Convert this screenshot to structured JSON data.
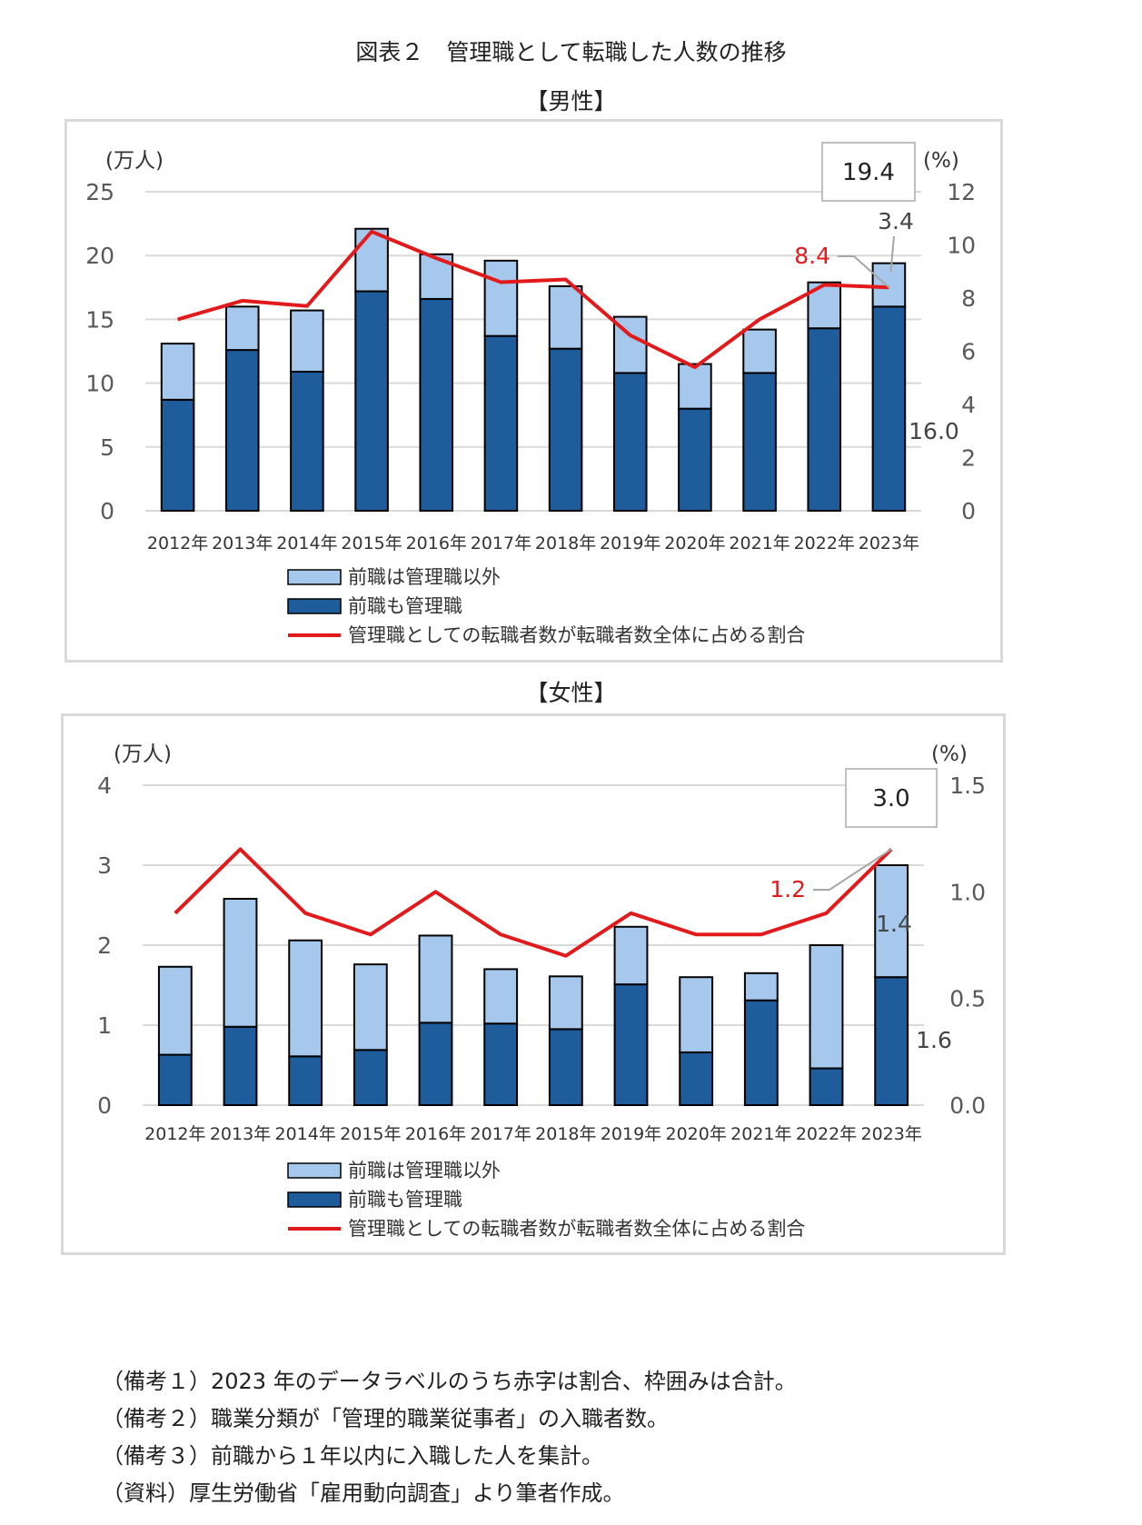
{
  "page_title": "図表２　管理職として転職した人数の推移",
  "colors": {
    "bar_light": "#a6c8ec",
    "bar_dark": "#1f5c9b",
    "line": "#e31a1c",
    "grid": "#d9d9d9",
    "axis_text": "#595959"
  },
  "chart_data": [
    {
      "type": "bar",
      "subtitle": "【男性】",
      "left_axis_unit": "(万人)",
      "right_axis_unit": "(%)",
      "categories": [
        "2012年",
        "2013年",
        "2014年",
        "2015年",
        "2016年",
        "2017年",
        "2018年",
        "2019年",
        "2020年",
        "2021年",
        "2022年",
        "2023年"
      ],
      "ylim": [
        0,
        25
      ],
      "yticks": [
        "0",
        "5",
        "10",
        "15",
        "20",
        "25"
      ],
      "y2lim": [
        0,
        12
      ],
      "y2ticks": [
        "0",
        "2",
        "4",
        "6",
        "8",
        "10",
        "12"
      ],
      "series": [
        {
          "name": "前職も管理職",
          "values": [
            8.7,
            12.6,
            10.9,
            17.2,
            16.6,
            13.7,
            12.7,
            10.8,
            8.0,
            10.8,
            14.3,
            16.0
          ]
        },
        {
          "name": "前職は管理職以外",
          "values": [
            4.4,
            3.4,
            4.8,
            4.9,
            3.5,
            5.9,
            4.9,
            4.4,
            3.5,
            3.4,
            3.6,
            3.4
          ]
        },
        {
          "name": "管理職としての転職者数が転職者数全体に占める割合",
          "axis": "right",
          "values": [
            7.2,
            7.9,
            7.7,
            10.5,
            9.5,
            8.6,
            8.7,
            6.6,
            5.4,
            7.2,
            8.5,
            8.4
          ]
        }
      ],
      "labels": {
        "total": "19.4",
        "upper": "3.4",
        "lower": "16.0",
        "ratio": "8.4"
      },
      "legend": [
        "前職は管理職以外",
        "前職も管理職",
        "管理職としての転職者数が転職者数全体に占める割合"
      ]
    },
    {
      "type": "bar",
      "subtitle": "【女性】",
      "left_axis_unit": "(万人)",
      "right_axis_unit": "(%)",
      "categories": [
        "2012年",
        "2013年",
        "2014年",
        "2015年",
        "2016年",
        "2017年",
        "2018年",
        "2019年",
        "2020年",
        "2021年",
        "2022年",
        "2023年"
      ],
      "ylim": [
        0,
        4
      ],
      "yticks": [
        "0",
        "1",
        "2",
        "3",
        "4"
      ],
      "y2lim": [
        0,
        1.5
      ],
      "y2ticks": [
        "0.0",
        "0.5",
        "1.0",
        "1.5"
      ],
      "series": [
        {
          "name": "前職も管理職",
          "values": [
            0.63,
            0.98,
            0.61,
            0.69,
            1.03,
            1.02,
            0.95,
            1.51,
            0.66,
            1.31,
            0.46,
            1.6
          ]
        },
        {
          "name": "前職は管理職以外",
          "values": [
            1.1,
            1.6,
            1.45,
            1.07,
            1.09,
            0.68,
            0.66,
            0.72,
            0.94,
            0.34,
            1.54,
            1.4
          ]
        },
        {
          "name": "管理職としての転職者数が転職者数全体に占める割合",
          "axis": "right",
          "values": [
            0.9,
            1.2,
            0.9,
            0.8,
            1.0,
            0.8,
            0.7,
            0.9,
            0.8,
            0.8,
            0.9,
            1.2
          ]
        }
      ],
      "labels": {
        "total": "3.0",
        "upper": "1.4",
        "lower": "1.6",
        "ratio": "1.2"
      },
      "legend": [
        "前職は管理職以外",
        "前職も管理職",
        "管理職としての転職者数が転職者数全体に占める割合"
      ]
    }
  ],
  "notes": [
    "（備考１）2023 年のデータラベルのうち赤字は割合、枠囲みは合計。",
    "（備考２）職業分類が「管理的職業従事者」の入職者数。",
    "（備考３）前職から１年以内に入職した人を集計。",
    "（資料）厚生労働省「雇用動向調査」より筆者作成。"
  ]
}
